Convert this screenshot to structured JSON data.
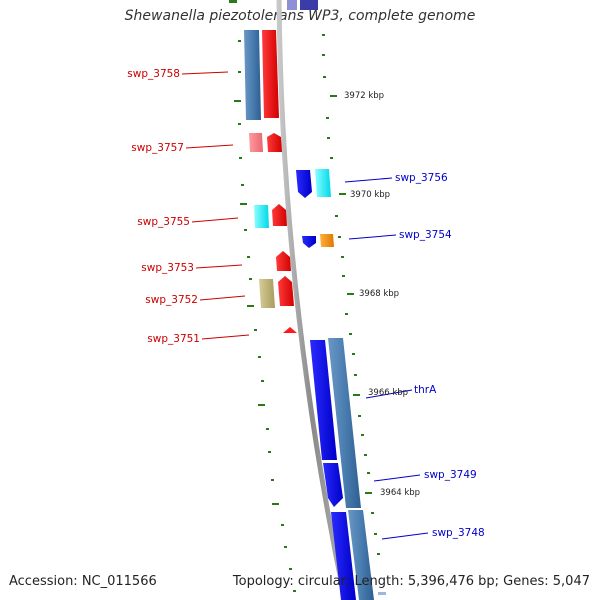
{
  "title": "Shewanella piezotolerans WP3, complete genome",
  "footer": {
    "accession": "Accession: NC_011566",
    "summary": "Topology: circular; Length: 5,396,476 bp; Genes: 5,047"
  },
  "colors": {
    "forward_label": "#cc0000",
    "reverse_label": "#0000cc",
    "tick": "#2a7a1a",
    "backbone": "#8f8f8f"
  },
  "left_labels": [
    {
      "id": "swp_3758",
      "text": "swp_3758"
    },
    {
      "id": "swp_3757",
      "text": "swp_3757"
    },
    {
      "id": "swp_3755",
      "text": "swp_3755"
    },
    {
      "id": "swp_3753",
      "text": "swp_3753"
    },
    {
      "id": "swp_3752",
      "text": "swp_3752"
    },
    {
      "id": "swp_3751",
      "text": "swp_3751"
    }
  ],
  "right_labels": [
    {
      "id": "swp_3756",
      "text": "swp_3756"
    },
    {
      "id": "swp_3754",
      "text": "swp_3754"
    },
    {
      "id": "thrA",
      "text": "thrA"
    },
    {
      "id": "swp_3749",
      "text": "swp_3749"
    },
    {
      "id": "swp_3748",
      "text": "swp_3748"
    }
  ],
  "kbp_markers": [
    {
      "text": "3972 kbp"
    },
    {
      "text": "3970 kbp"
    },
    {
      "text": "3968 kbp"
    },
    {
      "text": "3966 kbp"
    },
    {
      "text": "3964 kbp"
    }
  ]
}
